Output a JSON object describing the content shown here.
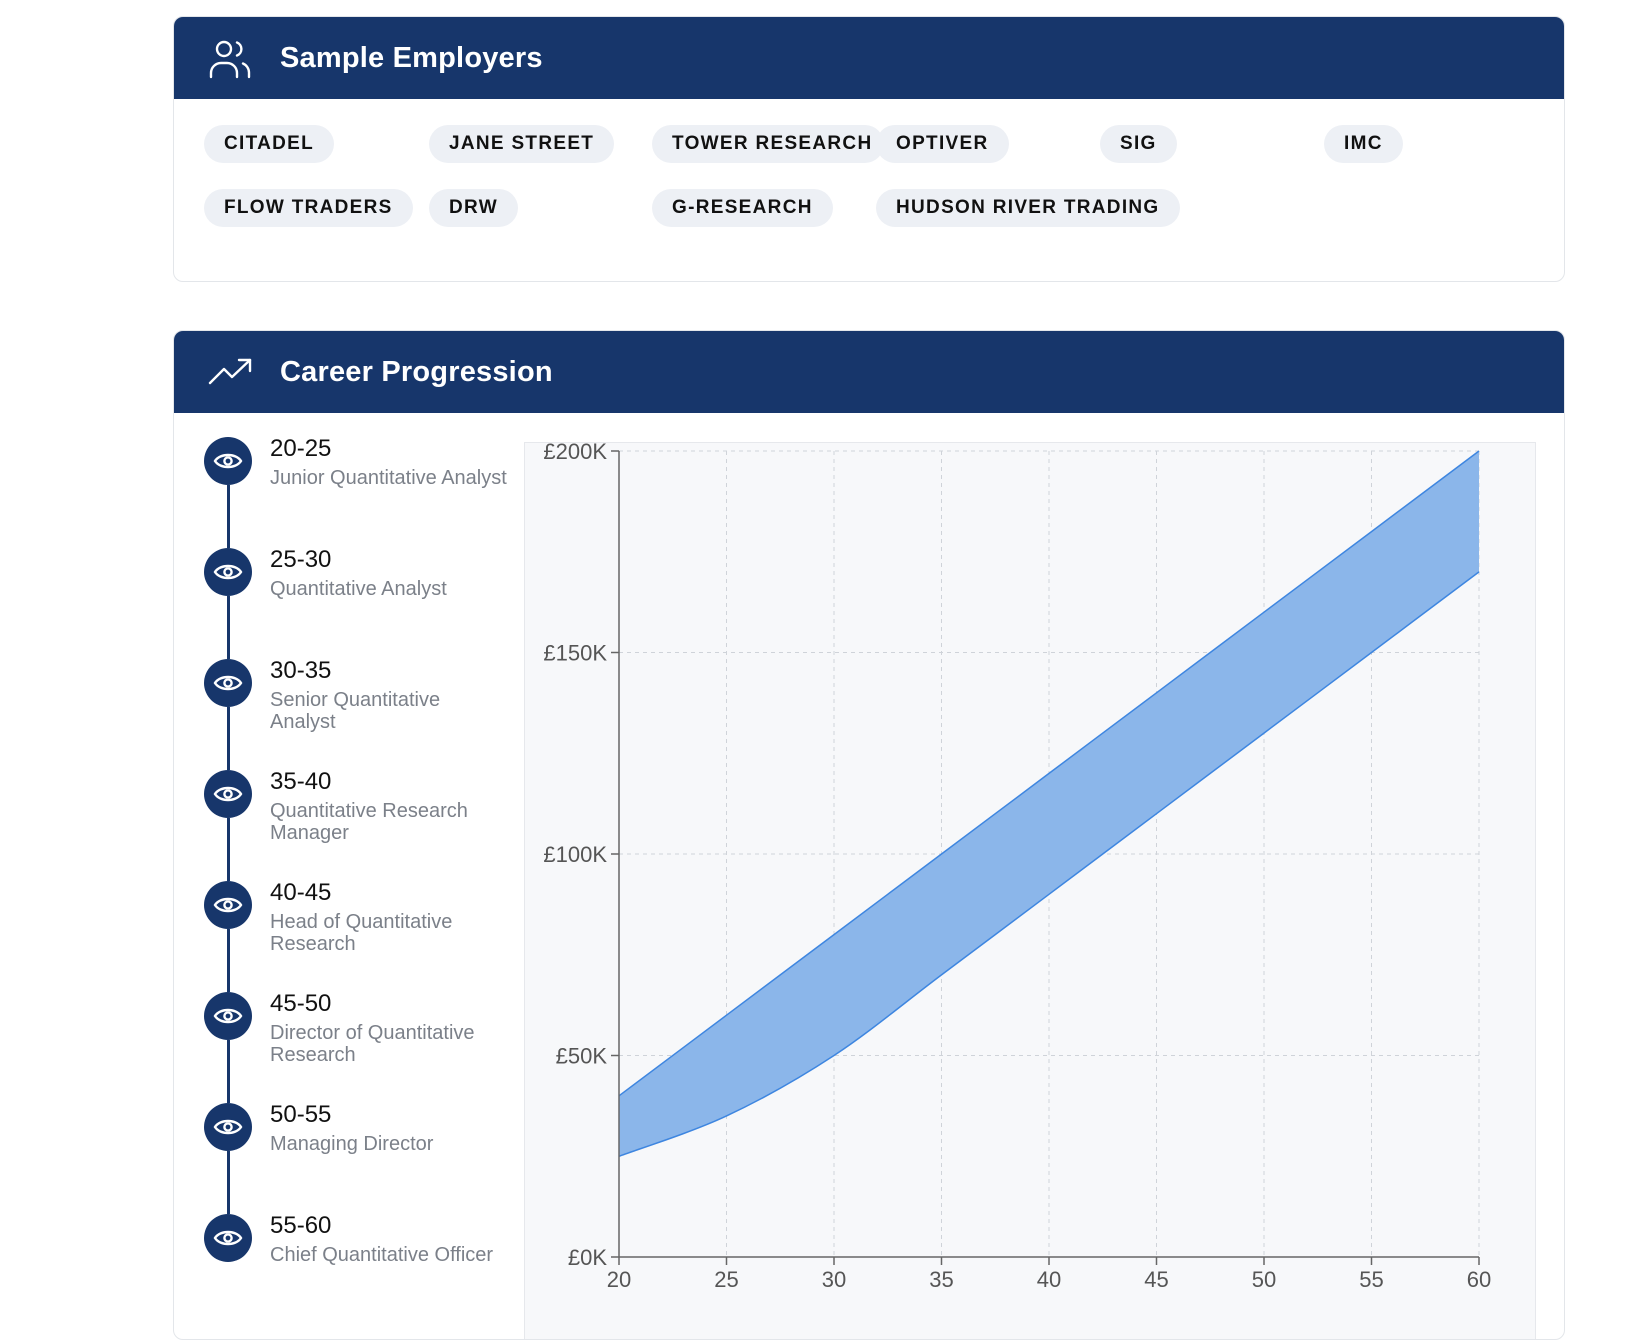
{
  "employers": {
    "title": "Sample Employers",
    "icon": "users-icon",
    "items": [
      "CITADEL",
      "JANE STREET",
      "TOWER RESEARCH CAPITAL",
      "OPTIVER",
      "SIG",
      "IMC",
      "FLOW TRADERS",
      "DRW",
      "G-RESEARCH",
      "HUDSON RIVER TRADING"
    ]
  },
  "career": {
    "title": "Career Progression",
    "icon": "trending-up-icon",
    "stages": [
      {
        "range": "20-25",
        "title": "Junior Quantitative Analyst"
      },
      {
        "range": "25-30",
        "title": "Quantitative Analyst"
      },
      {
        "range": "30-35",
        "title": "Senior Quantitative Analyst"
      },
      {
        "range": "35-40",
        "title": "Quantitative Research Manager"
      },
      {
        "range": "40-45",
        "title": "Head of Quantitative Research"
      },
      {
        "range": "45-50",
        "title": "Director of Quantitative Research"
      },
      {
        "range": "50-55",
        "title": "Managing Director"
      },
      {
        "range": "55-60",
        "title": "Chief Quantitative Officer"
      }
    ]
  },
  "chart_data": {
    "type": "area",
    "x": [
      20,
      25,
      30,
      35,
      40,
      45,
      50,
      55,
      60
    ],
    "series": [
      {
        "values": [
          25000,
          35000,
          50000,
          70000,
          90000,
          110000,
          130000,
          150000,
          170000
        ]
      },
      {
        "values": [
          40000,
          60000,
          80000,
          100000,
          120000,
          140000,
          160000,
          180000,
          200000
        ]
      }
    ],
    "xlim": [
      20,
      60
    ],
    "ylim": [
      0,
      200000
    ],
    "x_ticks": [
      "20",
      "25",
      "30",
      "35",
      "40",
      "45",
      "50",
      "55",
      "60"
    ],
    "y_ticks": [
      "£0K",
      "£50K",
      "£100K",
      "£150K",
      "£200K"
    ],
    "y_tick_values": [
      0,
      50000,
      100000,
      150000,
      200000
    ],
    "grid": true,
    "fill_color": "#8bb6ea",
    "line_color": "#3e86e0"
  },
  "colors": {
    "header": "#17366b",
    "chip": "#edf0f5"
  }
}
